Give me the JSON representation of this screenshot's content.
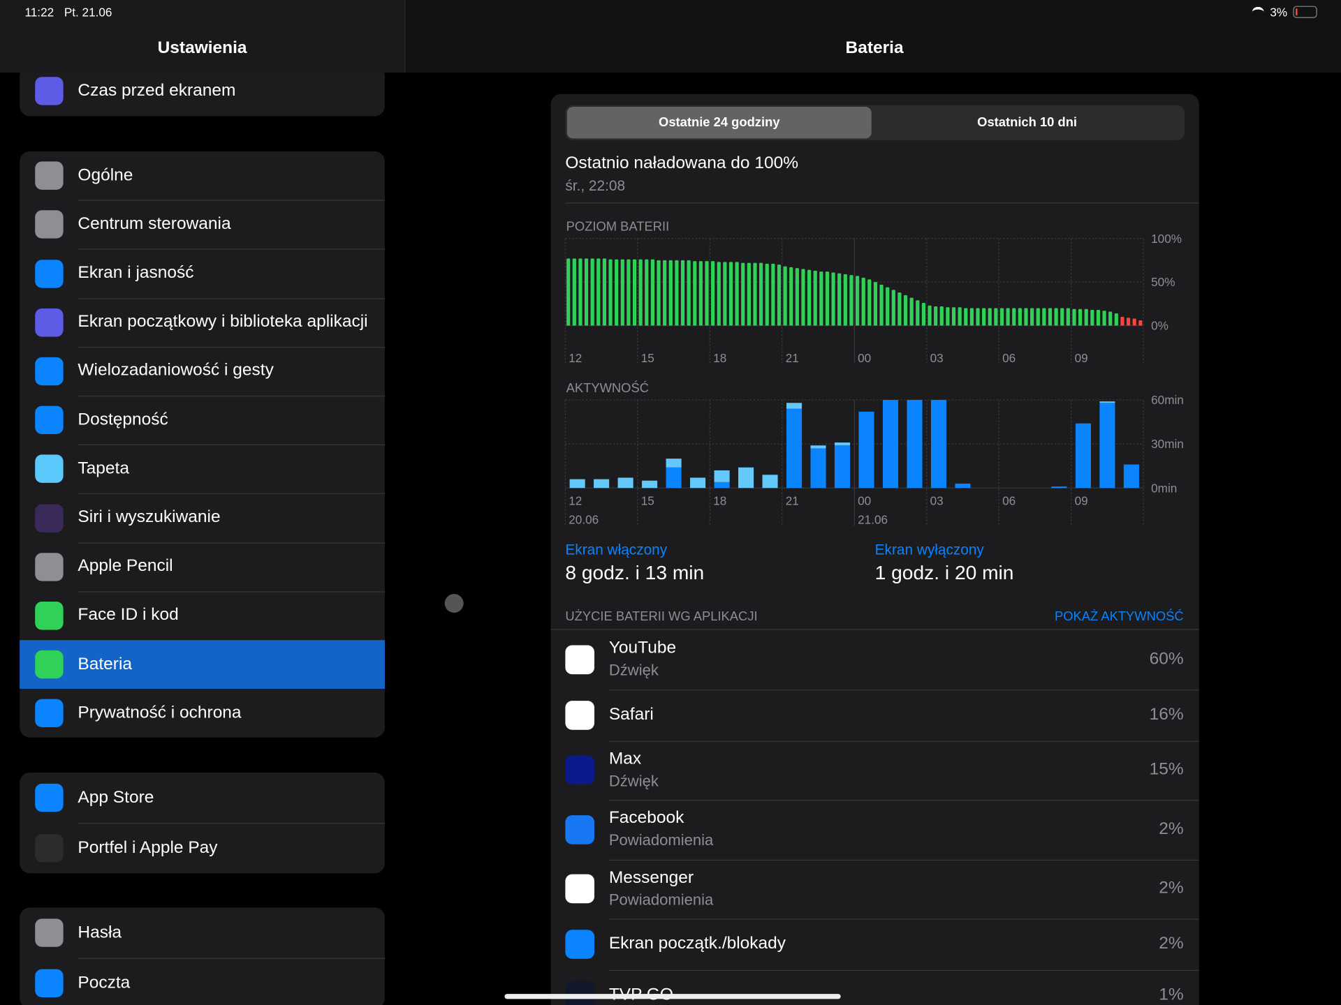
{
  "status_bar": {
    "time": "11:22",
    "date": "Pt. 21.06",
    "battery": "3%"
  },
  "sidebar": {
    "title": "Ustawienia",
    "groups": [
      {
        "items": [
          {
            "label": "Czas przed ekranem",
            "icon": "#5e5ce6"
          }
        ]
      },
      {
        "items": [
          {
            "label": "Ogólne",
            "icon": "#8e8e93"
          },
          {
            "label": "Centrum sterowania",
            "icon": "#8e8e93"
          },
          {
            "label": "Ekran i jasność",
            "icon": "#0a84ff"
          },
          {
            "label": "Ekran początkowy i biblioteka aplikacji",
            "icon": "#5e5ce6"
          },
          {
            "label": "Wielozadaniowość i gesty",
            "icon": "#0a84ff"
          },
          {
            "label": "Dostępność",
            "icon": "#0a84ff"
          },
          {
            "label": "Tapeta",
            "icon": "#5ac8fa"
          },
          {
            "label": "Siri i wyszukiwanie",
            "icon": "#3a2a5a"
          },
          {
            "label": "Apple Pencil",
            "icon": "#8e8e93"
          },
          {
            "label": "Face ID i kod",
            "icon": "#30d158"
          },
          {
            "label": "Bateria",
            "icon": "#30d158",
            "selected": true
          },
          {
            "label": "Prywatność i ochrona",
            "icon": "#0a84ff"
          }
        ]
      },
      {
        "items": [
          {
            "label": "App Store",
            "icon": "#0a84ff"
          },
          {
            "label": "Portfel i Apple Pay",
            "icon": "#2c2c2e"
          }
        ]
      },
      {
        "items": [
          {
            "label": "Hasła",
            "icon": "#8e8e93"
          },
          {
            "label": "Poczta",
            "icon": "#0a84ff"
          }
        ]
      }
    ]
  },
  "detail": {
    "title": "Bateria",
    "segments": [
      {
        "label": "Ostatnie 24 godziny",
        "selected": true
      },
      {
        "label": "Ostatnich 10 dni",
        "selected": false
      }
    ],
    "last_charged": "Ostatnio naładowana do 100%",
    "last_charged_time": "śr., 22:08",
    "battery_chart": {
      "type": "bar",
      "title": "POZIOM BATERII",
      "x_labels": [
        "12",
        "15",
        "18",
        "21",
        "00",
        "03",
        "06",
        "09"
      ],
      "values": [
        77,
        77,
        77,
        77,
        77,
        77,
        77,
        76,
        76,
        76,
        76,
        76,
        76,
        76,
        76,
        75,
        75,
        75,
        75,
        75,
        75,
        74,
        74,
        74,
        74,
        73,
        73,
        73,
        73,
        72,
        72,
        72,
        72,
        71,
        71,
        70,
        68,
        67,
        66,
        65,
        64,
        63,
        62,
        62,
        61,
        60,
        59,
        58,
        57,
        55,
        53,
        50,
        47,
        44,
        41,
        38,
        35,
        32,
        29,
        26,
        23,
        22,
        22,
        21,
        21,
        21,
        20,
        20,
        20,
        20,
        20,
        20,
        20,
        20,
        20,
        20,
        20,
        20,
        20,
        20,
        20,
        20,
        20,
        20,
        19,
        19,
        19,
        18,
        18,
        17,
        16,
        14,
        10,
        9,
        8,
        6
      ],
      "color": "#30d158",
      "low_color": "#ff453a",
      "low_level": 10,
      "ylim": [
        0,
        100
      ],
      "yticks": [
        {
          "value": 0,
          "label": "0%"
        },
        {
          "value": 50,
          "label": "50%"
        },
        {
          "value": 100,
          "label": "100%"
        }
      ]
    },
    "activity_chart": {
      "type": "stacked_bar",
      "title": "AKTYWNOŚĆ",
      "x_labels": [
        "12",
        "15",
        "18",
        "21",
        "00",
        "03",
        "06",
        "09"
      ],
      "dates": [
        "20.06",
        "21.06"
      ],
      "series": [
        {
          "color": "#0a84ff",
          "values": [
            0,
            0,
            0,
            0,
            14,
            0,
            4,
            0,
            0,
            54,
            27,
            29,
            52,
            60,
            60,
            60,
            3,
            0,
            0,
            0,
            1,
            44,
            58,
            16
          ]
        },
        {
          "color": "#64c8fa",
          "values": [
            6,
            6,
            7,
            5,
            6,
            7,
            8,
            14,
            9,
            4,
            2,
            2,
            0,
            0,
            0,
            0,
            0,
            0,
            0,
            0,
            0,
            0,
            1,
            0
          ]
        }
      ],
      "ylim": [
        0,
        60
      ],
      "yticks": [
        {
          "value": 0,
          "label": "0min"
        },
        {
          "value": 30,
          "label": "30min"
        },
        {
          "value": 60,
          "label": "60min"
        }
      ]
    },
    "screen_on": {
      "label": "Ekran włączony",
      "value": "8 godz. i 13 min"
    },
    "screen_off": {
      "label": "Ekran wyłączony",
      "value": "1 godz. i 20 min"
    },
    "usage_header": "UŻYCIE BATERII WG APLIKACJI",
    "show_activity": "POKAŻ AKTYWNOŚĆ",
    "apps": [
      {
        "name": "YouTube",
        "detail": "Dźwięk",
        "percent": "60%",
        "icon": "#ffffff"
      },
      {
        "name": "Safari",
        "percent": "16%",
        "icon": "#ffffff"
      },
      {
        "name": "Max",
        "detail": "Dźwięk",
        "percent": "15%",
        "icon": "#0a1a8a"
      },
      {
        "name": "Facebook",
        "detail": "Powiadomienia",
        "percent": "2%",
        "icon": "#1877f2"
      },
      {
        "name": "Messenger",
        "detail": "Powiadomienia",
        "percent": "2%",
        "icon": "#ffffff"
      },
      {
        "name": "Ekran początk./blokady",
        "percent": "2%",
        "icon": "#0a84ff"
      },
      {
        "name": "TVP GO",
        "percent": "1%",
        "icon": "#10182a"
      }
    ]
  }
}
